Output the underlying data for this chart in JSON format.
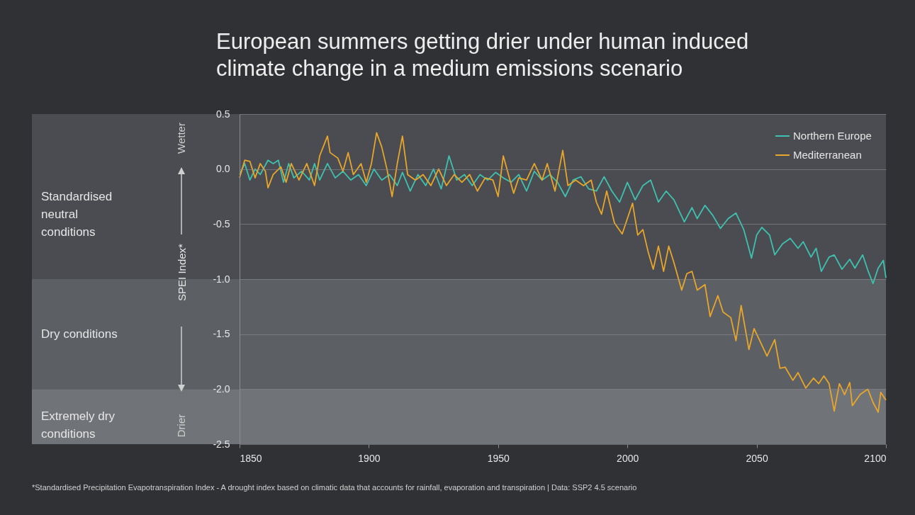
{
  "chart_data": {
    "type": "line",
    "title": "European summers getting drier under human induced climate change in a medium emissions scenario",
    "ylabel": "SPEI Index*",
    "annotations": [
      "Wetter",
      "Drier",
      "*Standardised Precipitation Evapotranspiration Index - A drought index based on climatic data that accounts for rainfall, evaporation and transpiration  |  Data: SSP2 4.5 scenario"
    ],
    "xlim": [
      1850,
      2100
    ],
    "xticks": [
      1850,
      1900,
      1950,
      2000,
      2050,
      2100
    ],
    "ylim": [
      -2.5,
      0.5
    ],
    "yticks": [
      {
        "value": 0.5,
        "label": "0.5"
      },
      {
        "value": 0,
        "label": "0.0"
      },
      {
        "value": -0.5,
        "label": "-0.5"
      },
      {
        "value": -1,
        "label": "-1.0"
      },
      {
        "value": -1.5,
        "label": "-1.5"
      },
      {
        "value": -2,
        "label": "-2.0"
      },
      {
        "value": -2.5,
        "label": "-2.5"
      }
    ],
    "grid": "y",
    "legend": "top right",
    "line_style": "solid",
    "marker": "none",
    "bands": [
      {
        "axis": "y",
        "from": 0.5,
        "to": -1,
        "label": "Standardised neutral conditions",
        "color": "#4a4c51"
      },
      {
        "axis": "y",
        "from": -1,
        "to": -2,
        "label": "Dry conditions",
        "color": "#5c5f64"
      },
      {
        "axis": "y",
        "from": -2,
        "to": -2.5,
        "label": "Extremely dry conditions",
        "color": "#707377"
      }
    ],
    "series": [
      {
        "name": "Northern Europe",
        "color": "#3fc1b0",
        "x": [
          1850,
          1852,
          1854,
          1856,
          1858,
          1861,
          1863,
          1865,
          1867,
          1869,
          1871,
          1874,
          1877,
          1879,
          1881,
          1884,
          1887,
          1890,
          1893,
          1896,
          1899,
          1902,
          1905,
          1908,
          1911,
          1913,
          1916,
          1919,
          1922,
          1925,
          1928,
          1931,
          1934,
          1937,
          1940,
          1943,
          1946,
          1949,
          1952,
          1955,
          1958,
          1961,
          1964,
          1967,
          1970,
          1973,
          1976,
          1979,
          1982,
          1985,
          1988,
          1991,
          1994,
          1997,
          2000,
          2003,
          2006,
          2009,
          2012,
          2015,
          2018,
          2022,
          2025,
          2027,
          2030,
          2033,
          2036,
          2039,
          2042,
          2045,
          2048,
          2050,
          2052,
          2055,
          2057,
          2060,
          2063,
          2066,
          2068,
          2071,
          2073,
          2075,
          2078,
          2080,
          2083,
          2086,
          2088,
          2091,
          2093,
          2095,
          2097,
          2099,
          2100
        ],
        "values": [
          -0.05,
          0.05,
          -0.1,
          0.0,
          -0.05,
          0.08,
          0.05,
          0.08,
          -0.12,
          0.05,
          -0.08,
          -0.02,
          -0.1,
          0.05,
          -0.1,
          0.05,
          -0.08,
          -0.02,
          -0.1,
          -0.05,
          -0.15,
          0.0,
          -0.1,
          -0.05,
          -0.15,
          -0.03,
          -0.2,
          -0.05,
          -0.15,
          0.0,
          -0.18,
          0.12,
          -0.1,
          -0.05,
          -0.15,
          -0.05,
          -0.1,
          -0.03,
          -0.08,
          -0.12,
          -0.05,
          -0.2,
          -0.02,
          -0.1,
          -0.05,
          -0.12,
          -0.25,
          -0.1,
          -0.07,
          -0.18,
          -0.2,
          -0.07,
          -0.2,
          -0.3,
          -0.12,
          -0.28,
          -0.15,
          -0.1,
          -0.3,
          -0.2,
          -0.28,
          -0.48,
          -0.35,
          -0.45,
          -0.33,
          -0.42,
          -0.54,
          -0.45,
          -0.4,
          -0.55,
          -0.81,
          -0.6,
          -0.53,
          -0.6,
          -0.78,
          -0.68,
          -0.63,
          -0.72,
          -0.66,
          -0.8,
          -0.72,
          -0.93,
          -0.8,
          -0.78,
          -0.91,
          -0.82,
          -0.9,
          -0.78,
          -0.92,
          -1.04,
          -0.9,
          -0.83,
          -0.99
        ]
      },
      {
        "name": "Mediterranean",
        "color": "#e8a62a",
        "x": [
          1850,
          1852,
          1854,
          1856,
          1858,
          1860,
          1861,
          1863,
          1866,
          1868,
          1870,
          1873,
          1876,
          1879,
          1881,
          1884,
          1885,
          1888,
          1890,
          1892,
          1894,
          1897,
          1899,
          1901,
          1903,
          1905,
          1907,
          1909,
          1911,
          1913,
          1915,
          1918,
          1921,
          1924,
          1927,
          1930,
          1933,
          1936,
          1939,
          1942,
          1945,
          1948,
          1950,
          1952,
          1954,
          1956,
          1958,
          1961,
          1964,
          1967,
          1969,
          1972,
          1975,
          1977,
          1980,
          1983,
          1986,
          1988,
          1990,
          1992,
          1995,
          1998,
          2000,
          2002,
          2004,
          2006,
          2008,
          2010,
          2012,
          2014,
          2016,
          2018,
          2021,
          2023,
          2025,
          2027,
          2030,
          2032,
          2035,
          2037,
          2040,
          2042,
          2044,
          2047,
          2049,
          2051,
          2054,
          2057,
          2059,
          2061,
          2064,
          2066,
          2069,
          2072,
          2074,
          2076,
          2078,
          2080,
          2082,
          2084,
          2086,
          2087,
          2090,
          2093,
          2095,
          2097,
          2098,
          2100
        ],
        "values": [
          -0.08,
          0.08,
          0.07,
          -0.08,
          0.05,
          -0.02,
          -0.17,
          -0.05,
          0.02,
          -0.12,
          0.05,
          -0.1,
          0.05,
          -0.15,
          0.12,
          0.3,
          0.15,
          0.1,
          -0.02,
          0.15,
          -0.05,
          0.05,
          -0.12,
          0.05,
          0.33,
          0.2,
          0.0,
          -0.25,
          0.05,
          0.3,
          -0.05,
          -0.1,
          -0.05,
          -0.15,
          0.0,
          -0.15,
          -0.05,
          -0.12,
          -0.05,
          -0.2,
          -0.08,
          -0.1,
          -0.25,
          0.12,
          -0.05,
          -0.22,
          -0.08,
          -0.1,
          0.05,
          -0.1,
          0.05,
          -0.2,
          0.17,
          -0.15,
          -0.1,
          -0.15,
          -0.1,
          -0.3,
          -0.41,
          -0.2,
          -0.49,
          -0.59,
          -0.45,
          -0.31,
          -0.6,
          -0.55,
          -0.75,
          -0.91,
          -0.7,
          -0.93,
          -0.7,
          -0.85,
          -1.1,
          -0.95,
          -0.93,
          -1.1,
          -1.05,
          -1.34,
          -1.15,
          -1.3,
          -1.35,
          -1.56,
          -1.24,
          -1.64,
          -1.45,
          -1.55,
          -1.7,
          -1.55,
          -1.81,
          -1.8,
          -1.92,
          -1.85,
          -1.99,
          -1.9,
          -1.95,
          -1.88,
          -1.95,
          -2.2,
          -1.95,
          -2.05,
          -1.94,
          -2.15,
          -2.05,
          -2.0,
          -2.12,
          -2.21,
          -2.03,
          -2.1
        ]
      }
    ]
  }
}
